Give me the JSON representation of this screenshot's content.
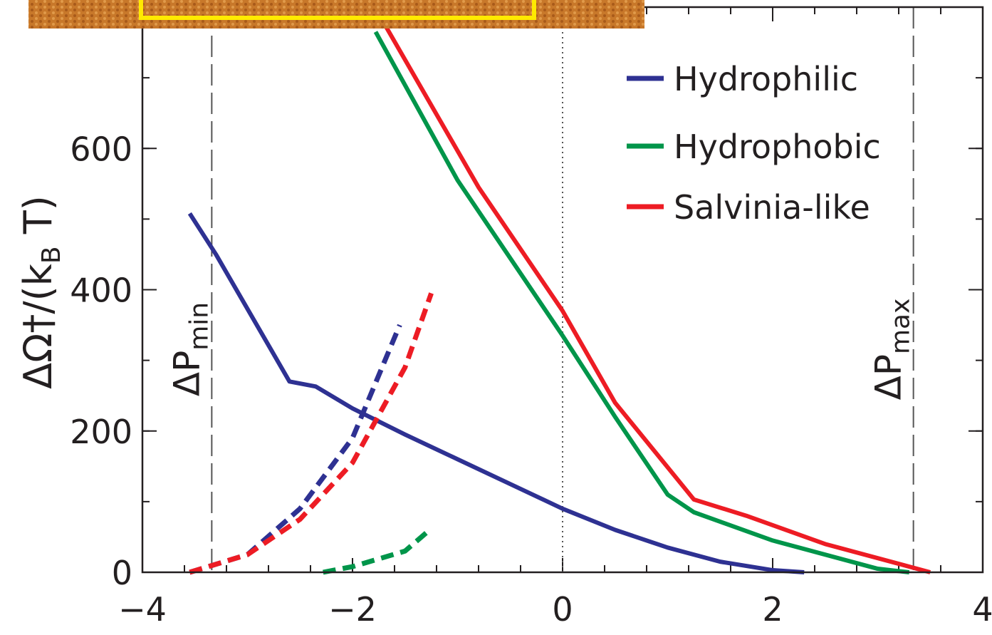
{
  "chart_data": {
    "type": "line",
    "y_label": {
      "main": "ΔΩ†/(k",
      "sub": "B",
      "tail": " T)"
    },
    "xlim": [
      -4,
      4
    ],
    "ylim": [
      0,
      800
    ],
    "xticks": [
      {
        "value": -4,
        "label": "−4"
      },
      {
        "value": -2,
        "label": "−2"
      },
      0,
      2,
      {
        "value": 4,
        "label": "4"
      }
    ],
    "yticks": [
      0,
      200,
      400,
      600
    ],
    "xminor_step": 0.4,
    "yminor_step": 100,
    "legend": "upper right",
    "series": [
      {
        "name": "Hydrophilic",
        "color": "#2e3192",
        "x": [
          -3.55,
          -3.3,
          -2.6,
          -2.35,
          -2,
          -1.5,
          -1,
          -0.5,
          0,
          0.5,
          1,
          1.5,
          2,
          2.3
        ],
        "values": [
          508,
          450,
          270,
          263,
          232,
          195,
          160,
          125,
          90,
          60,
          35,
          15,
          3,
          0
        ],
        "dashed": {
          "x": [
            -3.55,
            -3,
            -2.5,
            -2,
            -1.55
          ],
          "values": [
            0,
            25,
            90,
            190,
            350
          ]
        }
      },
      {
        "name": "Hydrophobic",
        "color": "#00954a",
        "x": [
          -1.78,
          -1,
          0,
          0.5,
          1,
          1.25,
          2,
          3,
          3.3
        ],
        "values": [
          765,
          555,
          335,
          220,
          110,
          85,
          45,
          5,
          0
        ],
        "dashed": {
          "x": [
            -2.28,
            -2,
            -1.5,
            -1.25
          ],
          "values": [
            0,
            8,
            30,
            62
          ]
        }
      },
      {
        "name": "Salvinia-like",
        "color": "#ed1c24",
        "x": [
          -1.75,
          -0.8,
          0,
          0.5,
          1.25,
          1.75,
          2.5,
          3.5
        ],
        "values": [
          790,
          545,
          370,
          240,
          103,
          80,
          40,
          0
        ],
        "dashed": {
          "x": [
            -3.55,
            -3,
            -2.5,
            -2,
            -1.5,
            -1.25
          ],
          "values": [
            0,
            25,
            75,
            155,
            290,
            395
          ]
        }
      }
    ],
    "vlines": [
      {
        "x": -3.34,
        "label": "ΔP",
        "sub": "min"
      },
      {
        "x": 3.34,
        "label": "ΔP",
        "sub": "max"
      }
    ],
    "zero_line": 0
  }
}
